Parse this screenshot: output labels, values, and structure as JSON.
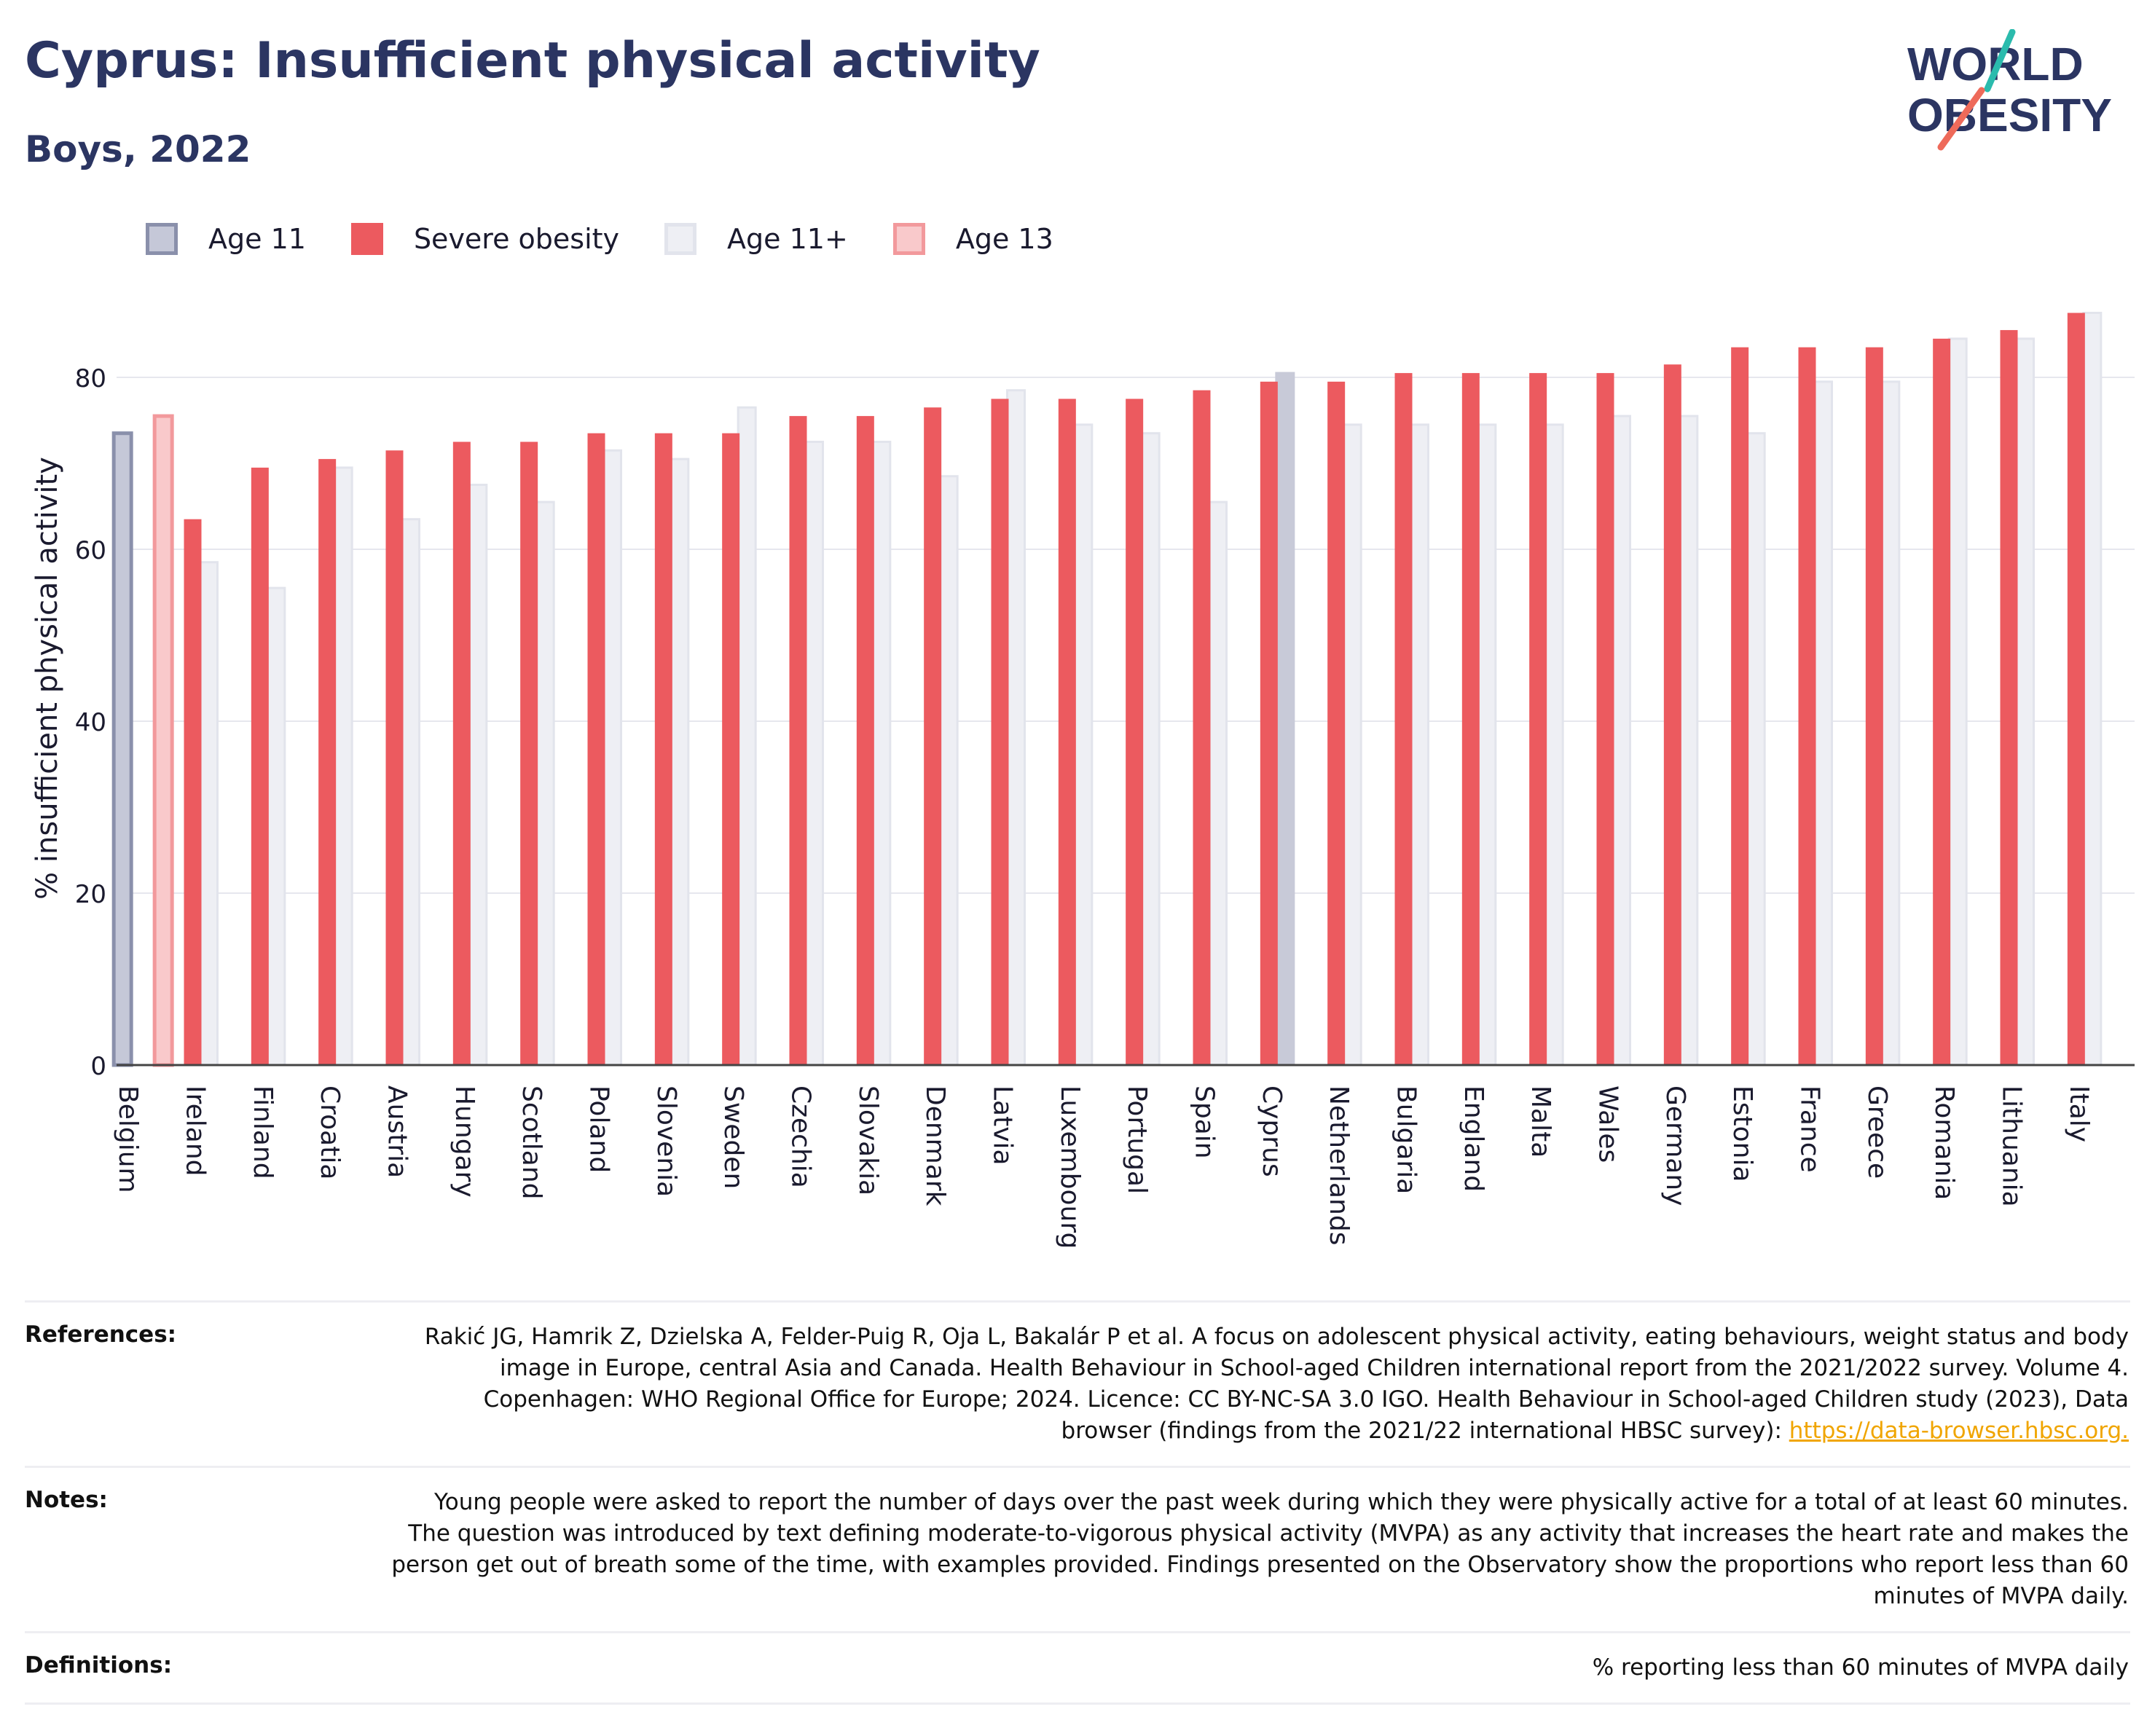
{
  "header": {
    "title": "Cyprus: Insufficient physical activity",
    "subtitle": "Boys, 2022"
  },
  "logo": {
    "line1": "WORLD",
    "line2": "OBESITY",
    "colors": {
      "text": "#2b3562",
      "accent_teal": "#2bbbad",
      "accent_coral": "#ee6a5a"
    }
  },
  "legend": [
    {
      "label": "Age 11",
      "fill": "#c5c8d8",
      "border": "#8a90ab"
    },
    {
      "label": "Severe obesity",
      "fill": "#ec5a5f",
      "border": "#ec5a5f"
    },
    {
      "label": "Age 11+",
      "fill": "#eeeff4",
      "border": "#e2e4ec"
    },
    {
      "label": "Age 13",
      "fill": "#f9c9cb",
      "border": "#f2999c"
    }
  ],
  "chart_data": {
    "type": "bar",
    "ylabel": "% insufficient physical activity",
    "ylim": [
      0,
      90
    ],
    "yticks": [
      0,
      20,
      40,
      60,
      80
    ],
    "grid": true,
    "legend_position": "top-left",
    "categories": [
      "Belgium",
      "Ireland",
      "Finland",
      "Croatia",
      "Austria",
      "Hungary",
      "Scotland",
      "Poland",
      "Slovenia",
      "Sweden",
      "Czechia",
      "Slovakia",
      "Denmark",
      "Latvia",
      "Luxembourg",
      "Portugal",
      "Spain",
      "Cyprus",
      "Netherlands",
      "Bulgaria",
      "England",
      "Malta",
      "Wales",
      "Germany",
      "Estonia",
      "France",
      "Greece",
      "Romania",
      "Lithuania",
      "Italy"
    ],
    "highlight": "Cyprus",
    "series": [
      {
        "name": "Age 11",
        "color": "#c5c8d8",
        "border": "#8a90ab",
        "values": [
          73.5,
          null,
          null,
          null,
          null,
          null,
          null,
          null,
          null,
          null,
          null,
          null,
          null,
          null,
          null,
          null,
          null,
          null,
          null,
          null,
          null,
          null,
          null,
          null,
          null,
          null,
          null,
          null,
          null,
          null
        ]
      },
      {
        "name": "Age 13",
        "color": "#f9c9cb",
        "border": "#f2999c",
        "values": [
          75.5,
          null,
          null,
          null,
          null,
          null,
          null,
          null,
          null,
          null,
          null,
          null,
          null,
          null,
          null,
          null,
          null,
          null,
          null,
          null,
          null,
          null,
          null,
          null,
          null,
          null,
          null,
          null,
          null,
          null
        ]
      },
      {
        "name": "Severe obesity",
        "color": "#ec5a5f",
        "border": "#ec5a5f",
        "values": [
          null,
          63.5,
          69.5,
          70.5,
          71.5,
          72.5,
          72.5,
          73.5,
          73.5,
          73.5,
          75.5,
          75.5,
          76.5,
          77.5,
          77.5,
          77.5,
          78.5,
          79.5,
          79.5,
          80.5,
          80.5,
          80.5,
          80.5,
          81.5,
          83.5,
          83.5,
          83.5,
          84.5,
          85.5,
          87.5
        ]
      },
      {
        "name": "Age 11+",
        "color": "#eeeff4",
        "border": "#e2e4ec",
        "highlight_color": "#c8cad8",
        "values": [
          null,
          58.5,
          55.5,
          69.5,
          63.5,
          67.5,
          65.5,
          71.5,
          70.5,
          76.5,
          72.5,
          72.5,
          68.5,
          78.5,
          74.5,
          73.5,
          65.5,
          80.5,
          74.5,
          74.5,
          74.5,
          74.5,
          75.5,
          75.5,
          73.5,
          79.5,
          79.5,
          84.5,
          84.5,
          87.5
        ]
      }
    ]
  },
  "meta": {
    "references_label": "References:",
    "references_text": "Rakić JG, Hamrik Z, Dzielska A, Felder-Puig R, Oja L, Bakalár P et al. A focus on adolescent physical activity, eating behaviours, weight status and body image in Europe, central Asia and Canada. Health Behaviour in School-aged Children international report from the 2021/2022 survey. Volume 4. Copenhagen: WHO Regional Office for Europe; 2024. Licence: CC BY-NC-SA 3.0 IGO. Health Behaviour in School-aged Children study (2023), Data browser (findings from the 2021/22 international HBSC survey): ",
    "references_link": "https://data-browser.hbsc.org.",
    "notes_label": "Notes:",
    "notes_text": "Young people were asked to report the number of days over the past week during which they were physically active for a total of at least 60 minutes. The question was introduced by text defining moderate-to-vigorous physical activity (MVPA) as any activity that increases the heart rate and makes the person get out of breath some of the time, with examples provided. Findings presented on the Observatory show the proportions who report less than 60 minutes of MVPA daily.",
    "definitions_label": "Definitions:",
    "definitions_text": "% reporting less than 60 minutes of MVPA daily"
  }
}
